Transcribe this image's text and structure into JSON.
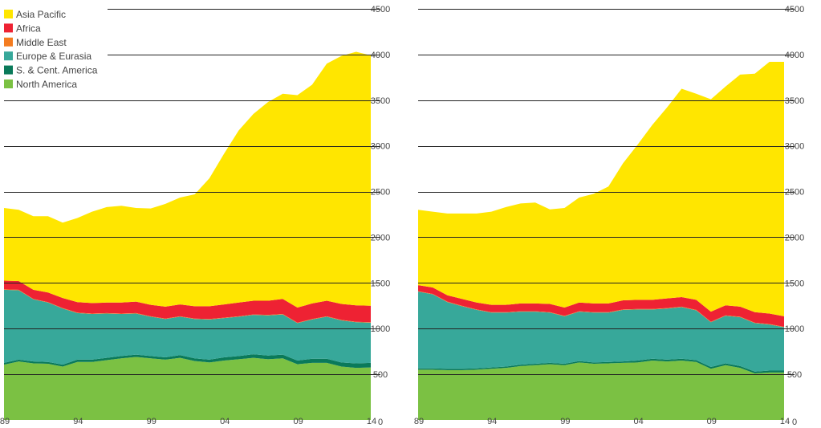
{
  "legend": {
    "entries": [
      "Asia Pacific",
      "Africa",
      "Middle East",
      "Europe & Eurasia",
      "S. & Cent. America",
      "North America"
    ]
  },
  "colors": {
    "North America": "#7bc143",
    "S. & Cent. America": "#0a7a5a",
    "Europe & Eurasia": "#37a89a",
    "Middle East": "#f47c20",
    "Africa": "#ee2233",
    "Asia Pacific": "#ffe600"
  },
  "chart_data": [
    {
      "type": "area",
      "stacked": true,
      "x": [
        1989,
        1990,
        1991,
        1992,
        1993,
        1994,
        1995,
        1996,
        1997,
        1998,
        1999,
        2000,
        2001,
        2002,
        2003,
        2004,
        2005,
        2006,
        2007,
        2008,
        2009,
        2010,
        2011,
        2012,
        2013,
        2014
      ],
      "x_tick_labels": [
        "89",
        "94",
        "99",
        "04",
        "09",
        "14"
      ],
      "x_tick_values": [
        1989,
        1994,
        1999,
        2004,
        2009,
        2014
      ],
      "y_tick_labels": [
        "0",
        "500",
        "1000",
        "1500",
        "2000",
        "2500",
        "3000",
        "3500",
        "4000",
        "4500"
      ],
      "ylim": [
        0,
        4500
      ],
      "grid": "horizontal",
      "legend_position": "top-left",
      "series": [
        {
          "name": "North America",
          "values": [
            605,
            640,
            620,
            615,
            585,
            635,
            635,
            655,
            675,
            690,
            675,
            660,
            680,
            645,
            630,
            650,
            665,
            680,
            665,
            675,
            610,
            625,
            625,
            585,
            570,
            575
          ]
        },
        {
          "name": "S. & Cent. America",
          "values": [
            20,
            20,
            20,
            20,
            20,
            25,
            25,
            25,
            25,
            25,
            25,
            25,
            30,
            30,
            30,
            35,
            35,
            40,
            40,
            40,
            40,
            45,
            45,
            45,
            50,
            50
          ]
        },
        {
          "name": "Europe & Eurasia",
          "values": [
            800,
            760,
            680,
            650,
            615,
            510,
            500,
            485,
            460,
            450,
            430,
            420,
            420,
            430,
            440,
            430,
            430,
            430,
            440,
            440,
            410,
            430,
            460,
            460,
            450,
            440
          ]
        },
        {
          "name": "Middle East",
          "values": [
            5,
            5,
            5,
            5,
            5,
            5,
            5,
            5,
            5,
            5,
            5,
            5,
            5,
            5,
            5,
            5,
            5,
            5,
            5,
            5,
            5,
            5,
            5,
            5,
            5,
            5
          ]
        },
        {
          "name": "Africa",
          "values": [
            95,
            95,
            100,
            105,
            110,
            115,
            115,
            115,
            120,
            125,
            125,
            130,
            130,
            135,
            140,
            145,
            150,
            150,
            155,
            165,
            165,
            170,
            170,
            175,
            180,
            180
          ]
        },
        {
          "name": "Asia Pacific",
          "values": [
            795,
            780,
            805,
            835,
            825,
            920,
            1000,
            1045,
            1060,
            1025,
            1055,
            1125,
            1170,
            1225,
            1400,
            1650,
            1885,
            2045,
            2175,
            2245,
            2325,
            2395,
            2595,
            2715,
            2775,
            2740
          ]
        }
      ]
    },
    {
      "type": "area",
      "stacked": true,
      "x": [
        1989,
        1990,
        1991,
        1992,
        1993,
        1994,
        1995,
        1996,
        1997,
        1998,
        1999,
        2000,
        2001,
        2002,
        2003,
        2004,
        2005,
        2006,
        2007,
        2008,
        2009,
        2010,
        2011,
        2012,
        2013,
        2014
      ],
      "x_tick_labels": [
        "89",
        "94",
        "99",
        "04",
        "09",
        "14"
      ],
      "x_tick_values": [
        1989,
        1994,
        1999,
        2004,
        2009,
        2014
      ],
      "y_tick_labels": [
        "0",
        "500",
        "1000",
        "1500",
        "2000",
        "2500",
        "3000",
        "3500",
        "4000",
        "4500"
      ],
      "ylim": [
        0,
        4500
      ],
      "grid": "horizontal",
      "series": [
        {
          "name": "North America",
          "values": [
            550,
            550,
            545,
            545,
            550,
            560,
            570,
            590,
            600,
            610,
            600,
            630,
            615,
            620,
            625,
            630,
            650,
            640,
            650,
            635,
            560,
            600,
            570,
            510,
            520,
            520
          ]
        },
        {
          "name": "S. & Cent. America",
          "values": [
            15,
            15,
            15,
            15,
            15,
            15,
            15,
            15,
            15,
            15,
            15,
            15,
            15,
            15,
            15,
            20,
            20,
            20,
            20,
            20,
            20,
            20,
            20,
            20,
            20,
            20
          ]
        },
        {
          "name": "Europe & Eurasia",
          "values": [
            840,
            810,
            730,
            685,
            640,
            600,
            590,
            580,
            570,
            550,
            520,
            540,
            545,
            540,
            565,
            560,
            540,
            560,
            565,
            545,
            490,
            520,
            535,
            530,
            505,
            475
          ]
        },
        {
          "name": "Middle East",
          "values": [
            5,
            5,
            5,
            5,
            5,
            5,
            5,
            5,
            5,
            5,
            5,
            5,
            5,
            5,
            5,
            5,
            5,
            5,
            5,
            5,
            5,
            5,
            5,
            5,
            5,
            5
          ]
        },
        {
          "name": "Africa",
          "values": [
            65,
            70,
            70,
            75,
            75,
            80,
            80,
            85,
            85,
            90,
            90,
            95,
            95,
            95,
            100,
            100,
            100,
            105,
            105,
            110,
            110,
            110,
            110,
            115,
            115,
            115
          ]
        },
        {
          "name": "Asia Pacific",
          "values": [
            825,
            830,
            895,
            935,
            975,
            1020,
            1070,
            1095,
            1105,
            1035,
            1090,
            1150,
            1200,
            1280,
            1500,
            1700,
            1915,
            2090,
            2280,
            2255,
            2325,
            2395,
            2540,
            2610,
            2755,
            2785
          ]
        }
      ]
    }
  ]
}
